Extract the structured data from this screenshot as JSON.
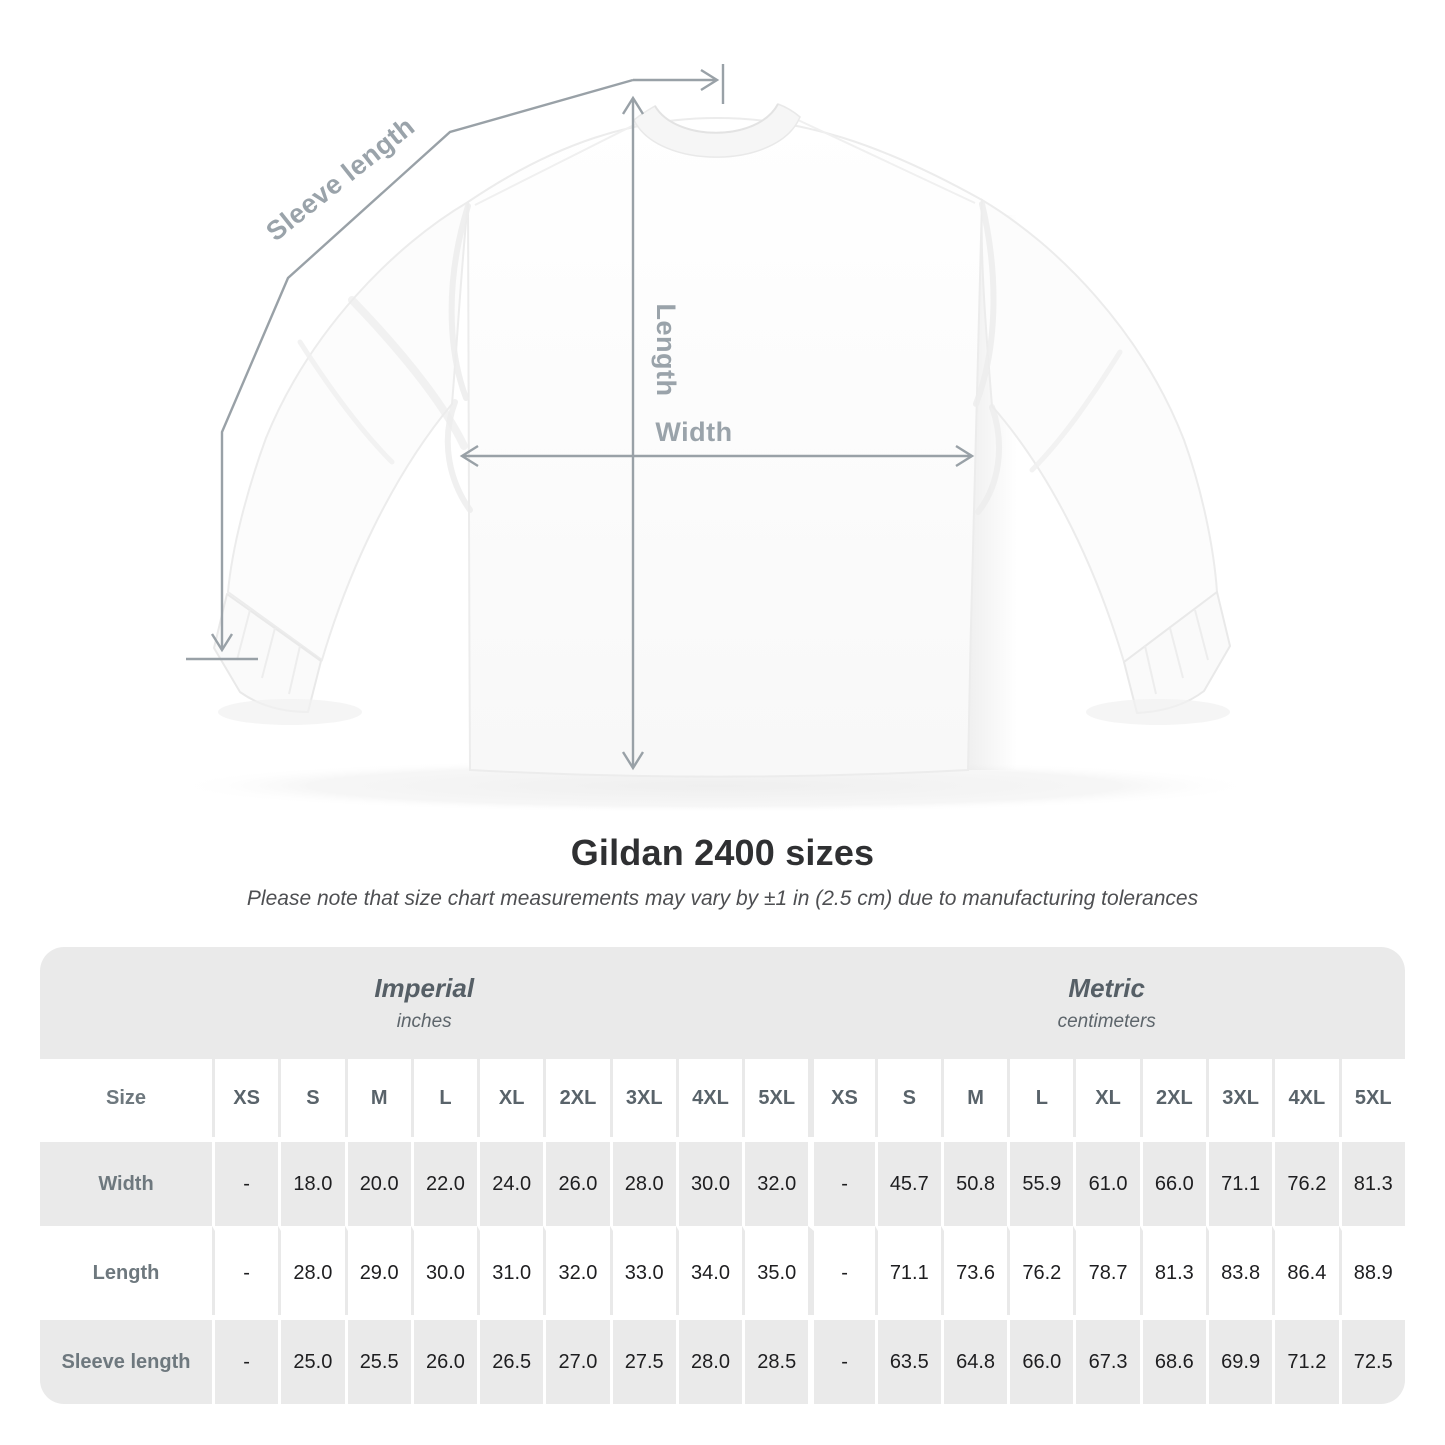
{
  "title": "Gildan 2400 sizes",
  "subtitle": "Please note that size chart measurements may vary by ±1 in (2.5 cm) due to manufacturing tolerances",
  "diagram": {
    "labels": {
      "sleeve_length": "Sleeve length",
      "length": "Length",
      "width": "Width"
    },
    "line_color": "#99a1a7",
    "label_color": "#9aa3aa"
  },
  "table": {
    "size_label": "Size",
    "group_headers": [
      {
        "label": "Imperial",
        "sub": "inches"
      },
      {
        "label": "Metric",
        "sub": "centimeters"
      }
    ],
    "sizes": [
      "XS",
      "S",
      "M",
      "L",
      "XL",
      "2XL",
      "3XL",
      "4XL",
      "5XL"
    ],
    "rows": [
      {
        "label": "Width",
        "imperial": [
          "-",
          "18.0",
          "20.0",
          "22.0",
          "24.0",
          "26.0",
          "28.0",
          "30.0",
          "32.0"
        ],
        "metric": [
          "-",
          "45.7",
          "50.8",
          "55.9",
          "61.0",
          "66.0",
          "71.1",
          "76.2",
          "81.3"
        ]
      },
      {
        "label": "Length",
        "imperial": [
          "-",
          "28.0",
          "29.0",
          "30.0",
          "31.0",
          "32.0",
          "33.0",
          "34.0",
          "35.0"
        ],
        "metric": [
          "-",
          "71.1",
          "73.6",
          "76.2",
          "78.7",
          "81.3",
          "83.8",
          "86.4",
          "88.9"
        ]
      },
      {
        "label": "Sleeve length",
        "imperial": [
          "-",
          "25.0",
          "25.5",
          "26.0",
          "26.5",
          "27.0",
          "27.5",
          "28.0",
          "28.5"
        ],
        "metric": [
          "-",
          "63.5",
          "64.8",
          "66.0",
          "67.3",
          "68.6",
          "69.9",
          "71.2",
          "72.5"
        ]
      }
    ]
  },
  "colors": {
    "table_band": "#eaeaea",
    "header_text": "#59636a",
    "row_label_text": "#6e787e",
    "value_text": "#1e1e20",
    "title_text": "#2f3032",
    "measure_line": "#99a1a7"
  },
  "chart_data": {
    "type": "table",
    "title": "Gildan 2400 sizes",
    "note": "Please note that size chart measurements may vary by ±1 in (2.5 cm) due to manufacturing tolerances",
    "column_groups": [
      "Imperial (inches)",
      "Metric (centimeters)"
    ],
    "columns": [
      "Size",
      "XS",
      "S",
      "M",
      "L",
      "XL",
      "2XL",
      "3XL",
      "4XL",
      "5XL",
      "XS",
      "S",
      "M",
      "L",
      "XL",
      "2XL",
      "3XL",
      "4XL",
      "5XL"
    ],
    "rows": [
      [
        "Width",
        "-",
        "18.0",
        "20.0",
        "22.0",
        "24.0",
        "26.0",
        "28.0",
        "30.0",
        "32.0",
        "-",
        "45.7",
        "50.8",
        "55.9",
        "61.0",
        "66.0",
        "71.1",
        "76.2",
        "81.3"
      ],
      [
        "Length",
        "-",
        "28.0",
        "29.0",
        "30.0",
        "31.0",
        "32.0",
        "33.0",
        "34.0",
        "35.0",
        "-",
        "71.1",
        "73.6",
        "76.2",
        "78.7",
        "81.3",
        "83.8",
        "86.4",
        "88.9"
      ],
      [
        "Sleeve length",
        "-",
        "25.0",
        "25.5",
        "26.0",
        "26.5",
        "27.0",
        "27.5",
        "28.0",
        "28.5",
        "-",
        "63.5",
        "64.8",
        "66.0",
        "67.3",
        "68.6",
        "69.9",
        "71.2",
        "72.5"
      ]
    ]
  }
}
